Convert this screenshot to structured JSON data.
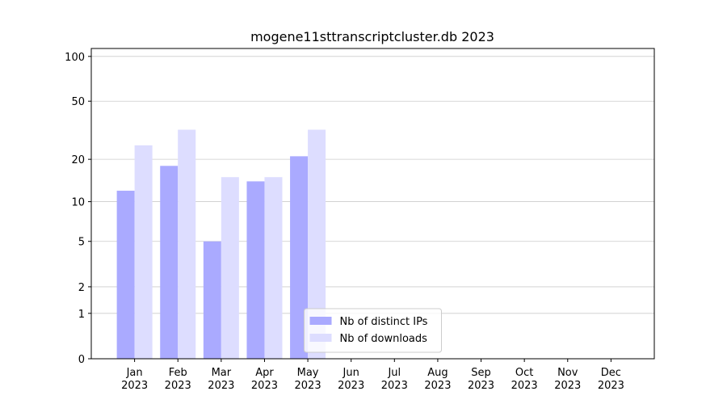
{
  "chart_data": {
    "type": "bar",
    "title": "mogene11sttranscriptcluster.db 2023",
    "categories": [
      "Jan\n2023",
      "Feb\n2023",
      "Mar\n2023",
      "Apr\n2023",
      "May\n2023",
      "Jun\n2023",
      "Jul\n2023",
      "Aug\n2023",
      "Sep\n2023",
      "Oct\n2023",
      "Nov\n2023",
      "Dec\n2023"
    ],
    "series": [
      {
        "name": "Nb of distinct IPs",
        "color": "#aaaaff",
        "values": [
          12,
          18,
          5,
          14,
          21,
          0,
          0,
          0,
          0,
          0,
          0,
          0
        ]
      },
      {
        "name": "Nb of downloads",
        "color": "#ddddff",
        "values": [
          25,
          32,
          15,
          15,
          32,
          0,
          0,
          0,
          0,
          0,
          0,
          0
        ]
      }
    ],
    "yscale": "symlog",
    "ylim": [
      0,
      113
    ],
    "yticks": [
      0,
      1,
      2,
      5,
      10,
      20,
      50,
      100
    ],
    "grid": true,
    "legend": "lower center"
  }
}
